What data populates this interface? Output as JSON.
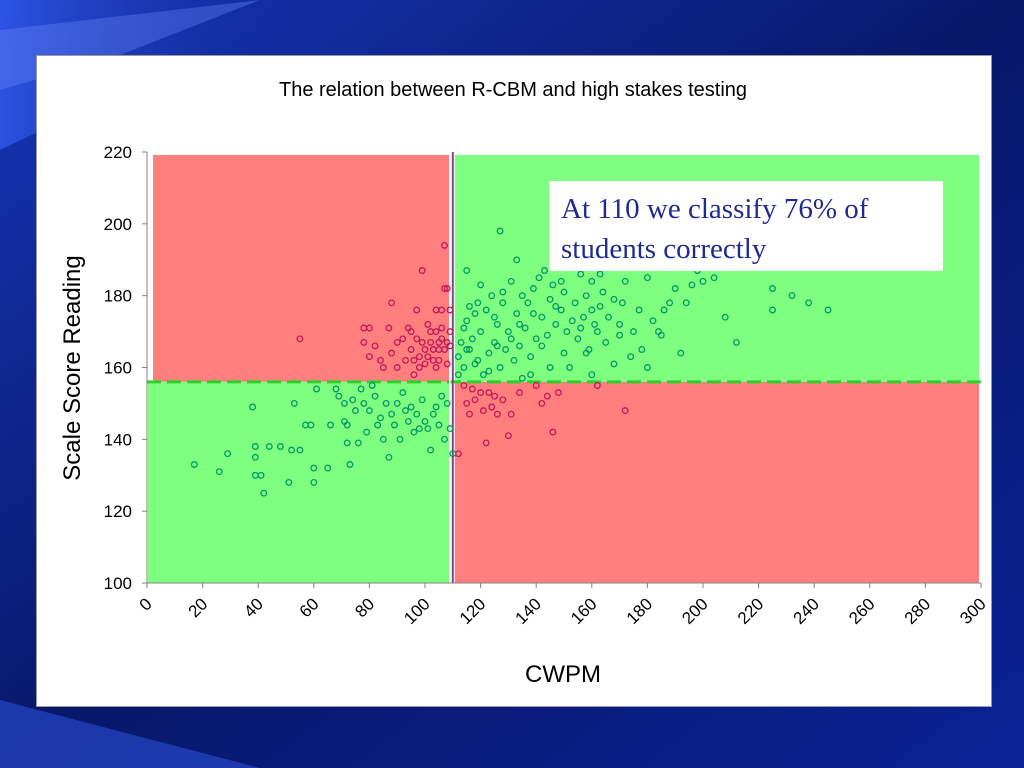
{
  "chart_data": {
    "type": "scatter",
    "title": "The relation between R-CBM and high stakes testing",
    "xlabel": "CWPM",
    "ylabel": "Scale Score Reading",
    "xlim": [
      0,
      300
    ],
    "ylim": [
      100,
      220
    ],
    "xticks": [
      "0",
      "20",
      "40",
      "60",
      "80",
      "100",
      "120",
      "140",
      "160",
      "180",
      "200",
      "220",
      "240",
      "260",
      "280",
      "300"
    ],
    "yticks": [
      "100",
      "120",
      "140",
      "160",
      "180",
      "200",
      "220"
    ],
    "cut_score_x": 110,
    "cut_score_y": 156,
    "quadrants": [
      {
        "region": "upper-left",
        "color": "#ff7f7f"
      },
      {
        "region": "upper-right",
        "color": "#7fff7f"
      },
      {
        "region": "lower-left",
        "color": "#7fff7f"
      },
      {
        "region": "lower-right",
        "color": "#ff7f7f"
      }
    ],
    "annotation": "At 110 we classify 76% of students correctly",
    "series": [
      {
        "color": "#c0185a",
        "points": [
          [
            55,
            168
          ],
          [
            78,
            171
          ],
          [
            80,
            171
          ],
          [
            78,
            167
          ],
          [
            80,
            163
          ],
          [
            82,
            166
          ],
          [
            84,
            162
          ],
          [
            85,
            160
          ],
          [
            87,
            171
          ],
          [
            88,
            164
          ],
          [
            88,
            178
          ],
          [
            90,
            160
          ],
          [
            90,
            167
          ],
          [
            92,
            168
          ],
          [
            93,
            162
          ],
          [
            94,
            171
          ],
          [
            95,
            170
          ],
          [
            95,
            165
          ],
          [
            96,
            162
          ],
          [
            96,
            158
          ],
          [
            97,
            168
          ],
          [
            97,
            176
          ],
          [
            98,
            163
          ],
          [
            98,
            160
          ],
          [
            99,
            167
          ],
          [
            99,
            187
          ],
          [
            100,
            165
          ],
          [
            100,
            161
          ],
          [
            101,
            163
          ],
          [
            101,
            172
          ],
          [
            102,
            170
          ],
          [
            102,
            167
          ],
          [
            103,
            162
          ],
          [
            103,
            165
          ],
          [
            104,
            170
          ],
          [
            104,
            176
          ],
          [
            104,
            160
          ],
          [
            105,
            165
          ],
          [
            105,
            167
          ],
          [
            105,
            162
          ],
          [
            106,
            171
          ],
          [
            106,
            168
          ],
          [
            106,
            176
          ],
          [
            107,
            165
          ],
          [
            107,
            182
          ],
          [
            107,
            194
          ],
          [
            108,
            167
          ],
          [
            108,
            182
          ],
          [
            108,
            161
          ],
          [
            109,
            170
          ],
          [
            109,
            176
          ],
          [
            109,
            166
          ],
          [
            114,
            155
          ],
          [
            115,
            150
          ],
          [
            116,
            147
          ],
          [
            117,
            154
          ],
          [
            118,
            151
          ],
          [
            120,
            153
          ],
          [
            121,
            148
          ],
          [
            122,
            139
          ],
          [
            123,
            153
          ],
          [
            124,
            149
          ],
          [
            125,
            152
          ],
          [
            126,
            147
          ],
          [
            128,
            151
          ],
          [
            130,
            141
          ],
          [
            131,
            147
          ],
          [
            134,
            153
          ],
          [
            140,
            155
          ],
          [
            142,
            150
          ],
          [
            144,
            152
          ],
          [
            146,
            142
          ],
          [
            148,
            153
          ],
          [
            162,
            155
          ],
          [
            172,
            148
          ],
          [
            112,
            136
          ]
        ]
      },
      {
        "color": "#009966",
        "points": [
          [
            17,
            133
          ],
          [
            26,
            131
          ],
          [
            29,
            136
          ],
          [
            38,
            149
          ],
          [
            39,
            138
          ],
          [
            39,
            135
          ],
          [
            39,
            130
          ],
          [
            41,
            130
          ],
          [
            42,
            125
          ],
          [
            44,
            138
          ],
          [
            48,
            138
          ],
          [
            51,
            128
          ],
          [
            52,
            137
          ],
          [
            53,
            150
          ],
          [
            55,
            137
          ],
          [
            57,
            144
          ],
          [
            59,
            144
          ],
          [
            60,
            128
          ],
          [
            60,
            132
          ],
          [
            61,
            154
          ],
          [
            65,
            132
          ],
          [
            66,
            144
          ],
          [
            68,
            154
          ],
          [
            69,
            152
          ],
          [
            71,
            145
          ],
          [
            71,
            150
          ],
          [
            72,
            139
          ],
          [
            72,
            144
          ],
          [
            73,
            133
          ],
          [
            74,
            151
          ],
          [
            75,
            148
          ],
          [
            76,
            139
          ],
          [
            77,
            154
          ],
          [
            78,
            150
          ],
          [
            79,
            142
          ],
          [
            80,
            148
          ],
          [
            81,
            155
          ],
          [
            82,
            152
          ],
          [
            83,
            144
          ],
          [
            84,
            146
          ],
          [
            85,
            140
          ],
          [
            86,
            150
          ],
          [
            87,
            135
          ],
          [
            88,
            147
          ],
          [
            89,
            144
          ],
          [
            90,
            150
          ],
          [
            91,
            140
          ],
          [
            92,
            153
          ],
          [
            93,
            148
          ],
          [
            94,
            145
          ],
          [
            95,
            149
          ],
          [
            96,
            142
          ],
          [
            97,
            147
          ],
          [
            98,
            143
          ],
          [
            99,
            151
          ],
          [
            100,
            145
          ],
          [
            101,
            143
          ],
          [
            102,
            137
          ],
          [
            103,
            147
          ],
          [
            104,
            149
          ],
          [
            105,
            144
          ],
          [
            106,
            152
          ],
          [
            107,
            140
          ],
          [
            108,
            150
          ],
          [
            109,
            143
          ],
          [
            110,
            136
          ],
          [
            112,
            158
          ],
          [
            113,
            167
          ],
          [
            114,
            160
          ],
          [
            115,
            173
          ],
          [
            116,
            165
          ],
          [
            117,
            168
          ],
          [
            118,
            175
          ],
          [
            119,
            162
          ],
          [
            120,
            170
          ],
          [
            121,
            158
          ],
          [
            122,
            176
          ],
          [
            123,
            164
          ],
          [
            124,
            180
          ],
          [
            125,
            167
          ],
          [
            126,
            172
          ],
          [
            127,
            160
          ],
          [
            128,
            178
          ],
          [
            129,
            165
          ],
          [
            130,
            170
          ],
          [
            131,
            184
          ],
          [
            132,
            162
          ],
          [
            133,
            175
          ],
          [
            134,
            166
          ],
          [
            135,
            180
          ],
          [
            136,
            171
          ],
          [
            137,
            178
          ],
          [
            138,
            163
          ],
          [
            139,
            182
          ],
          [
            140,
            168
          ],
          [
            141,
            185
          ],
          [
            142,
            174
          ],
          [
            143,
            187
          ],
          [
            144,
            169
          ],
          [
            145,
            179
          ],
          [
            146,
            183
          ],
          [
            147,
            172
          ],
          [
            148,
            190
          ],
          [
            149,
            176
          ],
          [
            150,
            181
          ],
          [
            151,
            170
          ],
          [
            152,
            188
          ],
          [
            153,
            173
          ],
          [
            154,
            178
          ],
          [
            155,
            168
          ],
          [
            156,
            186
          ],
          [
            157,
            174
          ],
          [
            158,
            180
          ],
          [
            159,
            165
          ],
          [
            160,
            184
          ],
          [
            161,
            172
          ],
          [
            162,
            170
          ],
          [
            163,
            177
          ],
          [
            164,
            181
          ],
          [
            165,
            167
          ],
          [
            166,
            174
          ],
          [
            168,
            179
          ],
          [
            170,
            172
          ],
          [
            172,
            184
          ],
          [
            174,
            163
          ],
          [
            175,
            170
          ],
          [
            177,
            176
          ],
          [
            180,
            185
          ],
          [
            182,
            173
          ],
          [
            184,
            170
          ],
          [
            186,
            176
          ],
          [
            188,
            178
          ],
          [
            190,
            182
          ],
          [
            192,
            164
          ],
          [
            194,
            178
          ],
          [
            198,
            187
          ],
          [
            200,
            184
          ],
          [
            204,
            185
          ],
          [
            208,
            174
          ],
          [
            212,
            167
          ],
          [
            220,
            188
          ],
          [
            225,
            176
          ],
          [
            225,
            182
          ],
          [
            232,
            180
          ],
          [
            238,
            178
          ],
          [
            245,
            176
          ],
          [
            127,
            198
          ],
          [
            133,
            190
          ],
          [
            120,
            183
          ],
          [
            125,
            174
          ],
          [
            138,
            158
          ],
          [
            152,
            160
          ],
          [
            160,
            158
          ],
          [
            168,
            161
          ],
          [
            180,
            160
          ],
          [
            115,
            187
          ],
          [
            158,
            164
          ],
          [
            170,
            169
          ],
          [
            116,
            177
          ],
          [
            128,
            181
          ],
          [
            142,
            166
          ],
          [
            135,
            157
          ],
          [
            145,
            160
          ],
          [
            178,
            165
          ],
          [
            118,
            161
          ],
          [
            131,
            168
          ],
          [
            147,
            177
          ],
          [
            163,
            186
          ],
          [
            185,
            169
          ],
          [
            156,
            171
          ],
          [
            139,
            175
          ],
          [
            123,
            159
          ],
          [
            115,
            165
          ],
          [
            112,
            163
          ],
          [
            114,
            171
          ],
          [
            119,
            178
          ],
          [
            126,
            166
          ],
          [
            134,
            172
          ],
          [
            149,
            184
          ],
          [
            160,
            176
          ],
          [
            171,
            178
          ],
          [
            196,
            183
          ],
          [
            150,
            164
          ]
        ]
      }
    ]
  }
}
